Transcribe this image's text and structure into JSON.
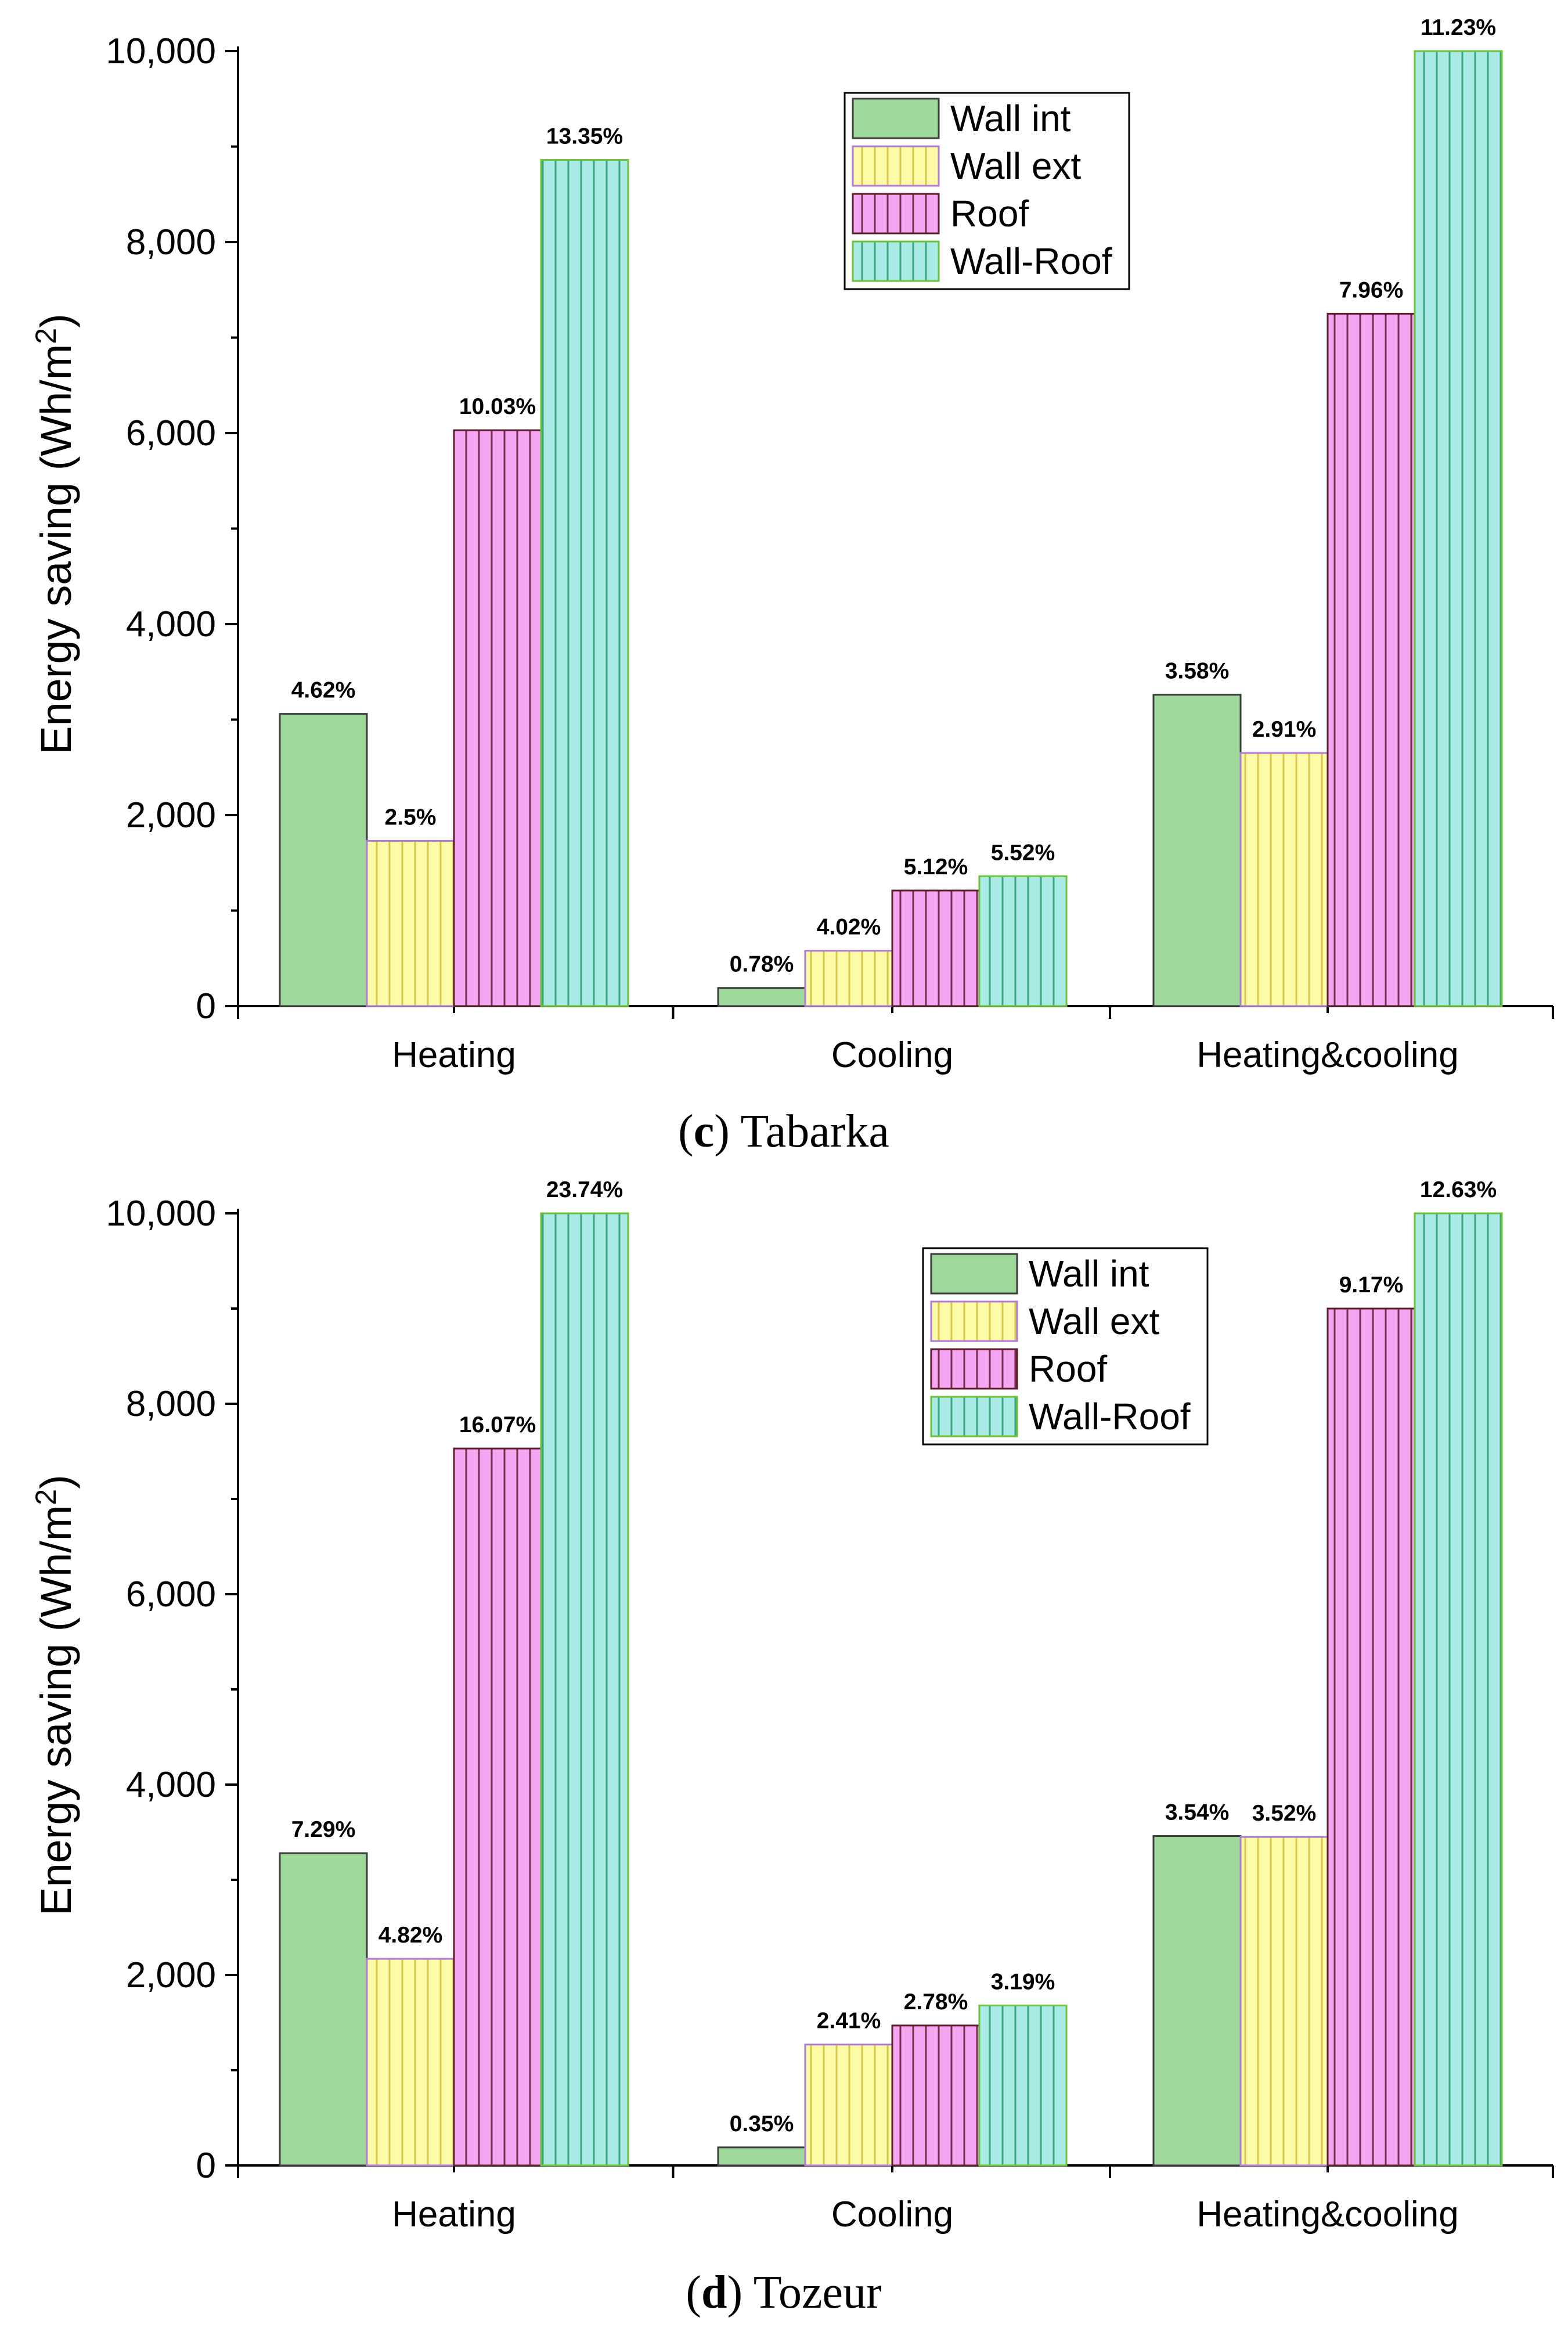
{
  "chart_data": [
    {
      "type": "bar",
      "caption_letter": "c",
      "caption_text": " Tabarka",
      "categories": [
        "Heating",
        "Cooling",
        "Heating&cooling"
      ],
      "ylabel": "Energy saving (Wh/m",
      "ylabel_sup": "2",
      "ylabel_close": ")",
      "ylim": [
        0,
        10000
      ],
      "yticks": [
        0,
        2000,
        4000,
        6000,
        8000,
        10000
      ],
      "ytick_labels": [
        "0",
        "2,000",
        "4,000",
        "6,000",
        "8,000",
        "10,000"
      ],
      "legend_position": "top-center",
      "series": [
        {
          "name": "Wall int",
          "values": [
            3060,
            190,
            3260
          ],
          "labels": [
            "4.62%",
            "0.78%",
            "3.58%"
          ]
        },
        {
          "name": "Wall ext",
          "values": [
            1730,
            580,
            2650
          ],
          "labels": [
            "2.5%",
            "4.02%",
            "2.91%"
          ]
        },
        {
          "name": "Roof",
          "values": [
            6030,
            1210,
            7250
          ],
          "labels": [
            "10.03%",
            "5.12%",
            "7.96%"
          ]
        },
        {
          "name": "Wall-Roof",
          "values": [
            8860,
            1360,
            10000
          ],
          "labels": [
            "13.35%",
            "5.52%",
            "11.23%"
          ]
        }
      ]
    },
    {
      "type": "bar",
      "caption_letter": "d",
      "caption_text": " Tozeur",
      "categories": [
        "Heating",
        "Cooling",
        "Heating&cooling"
      ],
      "ylabel": "Energy saving (Wh/m",
      "ylabel_sup": "2",
      "ylabel_close": ")",
      "ylim": [
        0,
        10000
      ],
      "yticks": [
        0,
        2000,
        4000,
        6000,
        8000,
        10000
      ],
      "ytick_labels": [
        "0",
        "2,000",
        "4,000",
        "6,000",
        "8,000",
        "10,000"
      ],
      "legend_position": "top-right",
      "series": [
        {
          "name": "Wall int",
          "values": [
            3280,
            190,
            3460
          ],
          "labels": [
            "7.29%",
            "0.35%",
            "3.54%"
          ]
        },
        {
          "name": "Wall ext",
          "values": [
            2170,
            1270,
            3450
          ],
          "labels": [
            "4.82%",
            "2.41%",
            "3.52%"
          ]
        },
        {
          "name": "Roof",
          "values": [
            7530,
            1470,
            9000
          ],
          "labels": [
            "16.07%",
            "2.78%",
            "9.17%"
          ]
        },
        {
          "name": "Wall-Roof",
          "values": [
            10000,
            1680,
            10000
          ],
          "labels": [
            "23.74%",
            "3.19%",
            "12.63%"
          ]
        }
      ]
    }
  ],
  "series_styles": [
    {
      "fill": "#9ed89b",
      "stroke": "#3c3c3c",
      "pattern": "none"
    },
    {
      "fill": "#fdfba8",
      "stroke": "#b07ad6",
      "pattern": "vlines",
      "line": "#d8c848"
    },
    {
      "fill": "#f5a6f2",
      "stroke": "#5a1f2a",
      "pattern": "vlines",
      "line": "#7a2a4a"
    },
    {
      "fill": "#a9eae4",
      "stroke": "#6cc23a",
      "pattern": "vlines",
      "line": "#3aa77f"
    }
  ]
}
